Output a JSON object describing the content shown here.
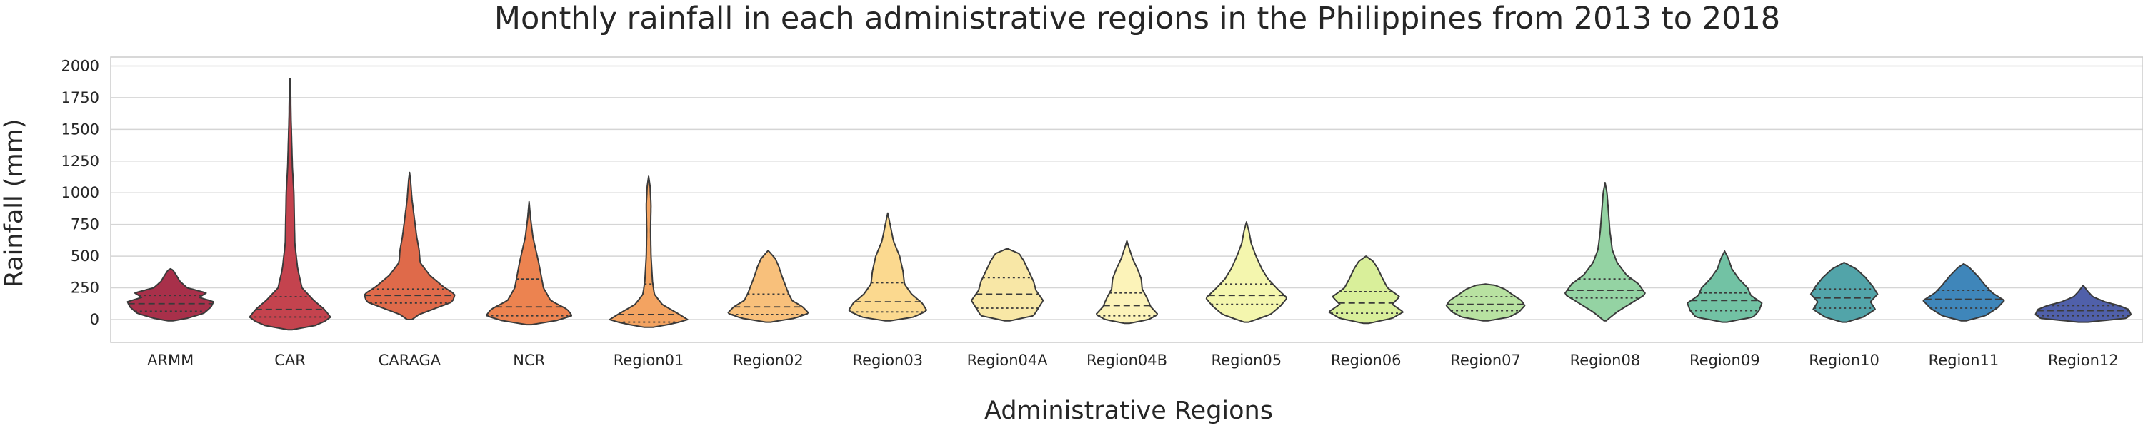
{
  "chart_data": {
    "type": "violin",
    "title": "Monthly rainfall in each administrative regions in the Philippines from 2013 to 2018",
    "xlabel": "Administrative Regions",
    "ylabel": "Rainfall (mm)",
    "ylim": [
      -180,
      2070
    ],
    "yticks": [
      0,
      250,
      500,
      750,
      1000,
      1250,
      1500,
      1750,
      2000
    ],
    "grid": "horizontal",
    "inner": "quartile",
    "categories": [
      "ARMM",
      "CAR",
      "CARAGA",
      "NCR",
      "Region01",
      "Region02",
      "Region03",
      "Region04A",
      "Region04B",
      "Region05",
      "Region06",
      "Region07",
      "Region08",
      "Region09",
      "Region10",
      "Region11",
      "Region12"
    ],
    "colors": [
      "#a8304a",
      "#c4434e",
      "#df6a4a",
      "#ec8350",
      "#f3a361",
      "#f8c07b",
      "#fbd98f",
      "#f8e7a6",
      "#fcf3b9",
      "#f4f6ae",
      "#d9ef9a",
      "#b8e2a1",
      "#94d3a3",
      "#72c2a4",
      "#52a4a9",
      "#3f86ba",
      "#5060aa"
    ],
    "violins": [
      {
        "name": "ARMM",
        "min": -10,
        "max": 400,
        "q1": 65,
        "median": 125,
        "q3": 190,
        "profile": [
          [
            -10,
            0.05
          ],
          [
            10,
            0.35
          ],
          [
            50,
            0.7
          ],
          [
            100,
            0.85
          ],
          [
            140,
            0.9
          ],
          [
            175,
            0.6
          ],
          [
            210,
            0.75
          ],
          [
            250,
            0.35
          ],
          [
            300,
            0.2
          ],
          [
            350,
            0.12
          ],
          [
            390,
            0.05
          ],
          [
            400,
            0
          ]
        ]
      },
      {
        "name": "CAR",
        "min": -80,
        "max": 1900,
        "q1": 20,
        "median": 80,
        "q3": 180,
        "profile": [
          [
            -80,
            0.05
          ],
          [
            -50,
            0.5
          ],
          [
            -10,
            0.75
          ],
          [
            20,
            0.85
          ],
          [
            80,
            0.72
          ],
          [
            150,
            0.5
          ],
          [
            250,
            0.25
          ],
          [
            400,
            0.16
          ],
          [
            600,
            0.1
          ],
          [
            800,
            0.09
          ],
          [
            1000,
            0.08
          ],
          [
            1200,
            0.05
          ],
          [
            1400,
            0.035
          ],
          [
            1600,
            0.02
          ],
          [
            1900,
            0.01
          ]
        ]
      },
      {
        "name": "CARAGA",
        "min": 0,
        "max": 1160,
        "q1": 130,
        "median": 190,
        "q3": 240,
        "profile": [
          [
            0,
            0.05
          ],
          [
            40,
            0.2
          ],
          [
            90,
            0.55
          ],
          [
            140,
            0.9
          ],
          [
            200,
            0.95
          ],
          [
            260,
            0.7
          ],
          [
            350,
            0.42
          ],
          [
            450,
            0.22
          ],
          [
            550,
            0.2
          ],
          [
            650,
            0.15
          ],
          [
            800,
            0.1
          ],
          [
            950,
            0.05
          ],
          [
            1100,
            0.02
          ],
          [
            1160,
            0
          ]
        ]
      },
      {
        "name": "NCR",
        "min": -40,
        "max": 930,
        "q1": 30,
        "median": 100,
        "q3": 320,
        "profile": [
          [
            -40,
            0.05
          ],
          [
            -10,
            0.55
          ],
          [
            30,
            0.9
          ],
          [
            80,
            0.8
          ],
          [
            150,
            0.45
          ],
          [
            250,
            0.3
          ],
          [
            350,
            0.25
          ],
          [
            450,
            0.2
          ],
          [
            550,
            0.14
          ],
          [
            650,
            0.08
          ],
          [
            800,
            0.03
          ],
          [
            930,
            0
          ]
        ]
      },
      {
        "name": "Region01",
        "min": -60,
        "max": 1130,
        "q1": -20,
        "median": 40,
        "q3": 280,
        "profile": [
          [
            -60,
            0.1
          ],
          [
            -30,
            0.55
          ],
          [
            0,
            0.82
          ],
          [
            50,
            0.6
          ],
          [
            120,
            0.28
          ],
          [
            200,
            0.12
          ],
          [
            300,
            0.08
          ],
          [
            500,
            0.05
          ],
          [
            700,
            0.04
          ],
          [
            900,
            0.05
          ],
          [
            1050,
            0.03
          ],
          [
            1130,
            0
          ]
        ]
      },
      {
        "name": "Region02",
        "min": -20,
        "max": 545,
        "q1": 40,
        "median": 100,
        "q3": 200,
        "profile": [
          [
            -20,
            0.05
          ],
          [
            10,
            0.55
          ],
          [
            50,
            0.85
          ],
          [
            100,
            0.72
          ],
          [
            150,
            0.5
          ],
          [
            210,
            0.42
          ],
          [
            280,
            0.35
          ],
          [
            350,
            0.28
          ],
          [
            420,
            0.22
          ],
          [
            480,
            0.15
          ],
          [
            545,
            0
          ]
        ]
      },
      {
        "name": "Region03",
        "min": -10,
        "max": 840,
        "q1": 60,
        "median": 140,
        "q3": 290,
        "profile": [
          [
            -10,
            0.05
          ],
          [
            20,
            0.55
          ],
          [
            70,
            0.82
          ],
          [
            130,
            0.72
          ],
          [
            200,
            0.5
          ],
          [
            280,
            0.35
          ],
          [
            380,
            0.32
          ],
          [
            500,
            0.25
          ],
          [
            620,
            0.12
          ],
          [
            750,
            0.05
          ],
          [
            840,
            0
          ]
        ]
      },
      {
        "name": "Region04A",
        "min": -10,
        "max": 560,
        "q1": 90,
        "median": 200,
        "q3": 330,
        "profile": [
          [
            -10,
            0.05
          ],
          [
            30,
            0.55
          ],
          [
            90,
            0.65
          ],
          [
            150,
            0.75
          ],
          [
            230,
            0.6
          ],
          [
            300,
            0.55
          ],
          [
            380,
            0.45
          ],
          [
            460,
            0.35
          ],
          [
            520,
            0.25
          ],
          [
            560,
            0
          ]
        ]
      },
      {
        "name": "Region04B",
        "min": -30,
        "max": 620,
        "q1": 30,
        "median": 110,
        "q3": 210,
        "profile": [
          [
            -30,
            0.05
          ],
          [
            0,
            0.45
          ],
          [
            40,
            0.65
          ],
          [
            100,
            0.5
          ],
          [
            170,
            0.42
          ],
          [
            240,
            0.32
          ],
          [
            320,
            0.3
          ],
          [
            400,
            0.22
          ],
          [
            480,
            0.12
          ],
          [
            560,
            0.05
          ],
          [
            620,
            0
          ]
        ]
      },
      {
        "name": "Region05",
        "min": -20,
        "max": 770,
        "q1": 120,
        "median": 190,
        "q3": 280,
        "profile": [
          [
            -20,
            0.05
          ],
          [
            40,
            0.5
          ],
          [
            110,
            0.72
          ],
          [
            170,
            0.85
          ],
          [
            240,
            0.65
          ],
          [
            320,
            0.45
          ],
          [
            400,
            0.32
          ],
          [
            500,
            0.2
          ],
          [
            600,
            0.1
          ],
          [
            700,
            0.05
          ],
          [
            770,
            0
          ]
        ]
      },
      {
        "name": "Region06",
        "min": -30,
        "max": 500,
        "q1": 50,
        "median": 130,
        "q3": 220,
        "profile": [
          [
            -30,
            0.05
          ],
          [
            10,
            0.55
          ],
          [
            60,
            0.78
          ],
          [
            120,
            0.55
          ],
          [
            180,
            0.7
          ],
          [
            250,
            0.45
          ],
          [
            320,
            0.35
          ],
          [
            400,
            0.25
          ],
          [
            460,
            0.15
          ],
          [
            500,
            0
          ]
        ]
      },
      {
        "name": "Region07",
        "min": -10,
        "max": 280,
        "q1": 70,
        "median": 120,
        "q3": 180,
        "profile": [
          [
            -10,
            0.05
          ],
          [
            20,
            0.5
          ],
          [
            60,
            0.7
          ],
          [
            110,
            0.82
          ],
          [
            150,
            0.75
          ],
          [
            200,
            0.55
          ],
          [
            240,
            0.4
          ],
          [
            270,
            0.2
          ],
          [
            280,
            0
          ]
        ]
      },
      {
        "name": "Region08",
        "min": -10,
        "max": 1080,
        "q1": 170,
        "median": 230,
        "q3": 320,
        "profile": [
          [
            -10,
            0.02
          ],
          [
            60,
            0.25
          ],
          [
            130,
            0.55
          ],
          [
            200,
            0.85
          ],
          [
            280,
            0.7
          ],
          [
            350,
            0.45
          ],
          [
            450,
            0.25
          ],
          [
            550,
            0.15
          ],
          [
            700,
            0.1
          ],
          [
            850,
            0.07
          ],
          [
            1000,
            0.04
          ],
          [
            1080,
            0
          ]
        ]
      },
      {
        "name": "Region09",
        "min": -20,
        "max": 540,
        "q1": 70,
        "median": 150,
        "q3": 210,
        "profile": [
          [
            -20,
            0.05
          ],
          [
            20,
            0.6
          ],
          [
            70,
            0.72
          ],
          [
            130,
            0.78
          ],
          [
            190,
            0.55
          ],
          [
            250,
            0.48
          ],
          [
            320,
            0.3
          ],
          [
            400,
            0.15
          ],
          [
            480,
            0.08
          ],
          [
            540,
            0
          ]
        ]
      },
      {
        "name": "Region10",
        "min": -20,
        "max": 450,
        "q1": 90,
        "median": 170,
        "q3": 240,
        "profile": [
          [
            -20,
            0.05
          ],
          [
            20,
            0.4
          ],
          [
            80,
            0.65
          ],
          [
            140,
            0.55
          ],
          [
            200,
            0.7
          ],
          [
            260,
            0.6
          ],
          [
            330,
            0.45
          ],
          [
            400,
            0.25
          ],
          [
            450,
            0
          ]
        ]
      },
      {
        "name": "Region11",
        "min": -10,
        "max": 440,
        "q1": 90,
        "median": 160,
        "q3": 230,
        "profile": [
          [
            -10,
            0.05
          ],
          [
            30,
            0.45
          ],
          [
            90,
            0.7
          ],
          [
            150,
            0.85
          ],
          [
            210,
            0.6
          ],
          [
            270,
            0.45
          ],
          [
            340,
            0.3
          ],
          [
            410,
            0.12
          ],
          [
            440,
            0
          ]
        ]
      },
      {
        "name": "Region12",
        "min": -20,
        "max": 270,
        "q1": 30,
        "median": 70,
        "q3": 110,
        "profile": [
          [
            -20,
            0.1
          ],
          [
            10,
            0.9
          ],
          [
            40,
            1.0
          ],
          [
            80,
            0.95
          ],
          [
            110,
            0.75
          ],
          [
            140,
            0.45
          ],
          [
            180,
            0.2
          ],
          [
            220,
            0.1
          ],
          [
            270,
            0
          ]
        ]
      }
    ]
  }
}
